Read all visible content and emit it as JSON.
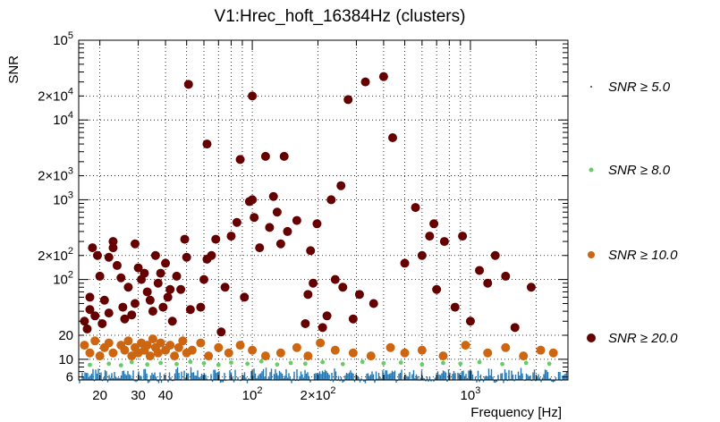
{
  "chart_data": {
    "type": "scatter",
    "title": "V1:Hrec_hoft_16384Hz (clusters)",
    "xlabel": "Frequency [Hz]",
    "ylabel": "SNR",
    "xscale": "log",
    "yscale": "log",
    "xlim": [
      16,
      2800
    ],
    "ylim": [
      5.5,
      100000
    ],
    "grid": true,
    "legend_placement": "right",
    "x_ticks": [
      {
        "value": 20,
        "label": "20"
      },
      {
        "value": 30,
        "label": "30"
      },
      {
        "value": 40,
        "label": "40"
      },
      {
        "value": 100,
        "label": "10",
        "exp": "2"
      },
      {
        "value": 200,
        "label": "2×10",
        "exp": "2"
      },
      {
        "value": 1000,
        "label": "10",
        "exp": "3"
      }
    ],
    "y_ticks": [
      {
        "value": 6,
        "label": "6"
      },
      {
        "value": 10,
        "label": "10"
      },
      {
        "value": 20,
        "label": "20"
      },
      {
        "value": 100,
        "label": "10",
        "exp": "2"
      },
      {
        "value": 200,
        "label": "2×10",
        "exp": "2"
      },
      {
        "value": 1000,
        "label": "10",
        "exp": "3"
      },
      {
        "value": 2000,
        "label": "2×10",
        "exp": "3"
      },
      {
        "value": 10000,
        "label": "10",
        "exp": "4"
      },
      {
        "value": 20000,
        "label": "2×10",
        "exp": "4"
      },
      {
        "value": 100000,
        "label": "10",
        "exp": "5"
      }
    ],
    "series": [
      {
        "name": "SNR ≥ 5.0",
        "color": "#1f77b4",
        "marker": "dot-column",
        "note_range": [
          5.0,
          8.0
        ]
      },
      {
        "name": "SNR ≥ 8.0",
        "color": "#66cc66",
        "marker": "dot",
        "points": [
          [
            18,
            8.5
          ],
          [
            22,
            8.8
          ],
          [
            25,
            8.4
          ],
          [
            28,
            9.2
          ],
          [
            33,
            8.6
          ],
          [
            38,
            9.0
          ],
          [
            45,
            8.7
          ],
          [
            52,
            9.3
          ],
          [
            60,
            8.9
          ],
          [
            70,
            8.5
          ],
          [
            80,
            9.1
          ],
          [
            95,
            8.8
          ],
          [
            110,
            9.4
          ],
          [
            130,
            8.6
          ],
          [
            150,
            9.0
          ],
          [
            175,
            8.8
          ],
          [
            210,
            9.2
          ],
          [
            260,
            8.7
          ],
          [
            320,
            9.3
          ],
          [
            400,
            8.9
          ],
          [
            480,
            9.1
          ],
          [
            600,
            8.6
          ],
          [
            750,
            9.0
          ],
          [
            900,
            8.8
          ],
          [
            1100,
            9.2
          ],
          [
            1400,
            8.7
          ],
          [
            1800,
            9.0
          ],
          [
            2300,
            8.8
          ]
        ]
      },
      {
        "name": "SNR ≥ 10.0",
        "color": "#cc6611",
        "marker": "circle",
        "points": [
          [
            17,
            15
          ],
          [
            18,
            12
          ],
          [
            19,
            17
          ],
          [
            20,
            11
          ],
          [
            21,
            14
          ],
          [
            22,
            16
          ],
          [
            23,
            12
          ],
          [
            25,
            15
          ],
          [
            26,
            13
          ],
          [
            27,
            17
          ],
          [
            28,
            11
          ],
          [
            29,
            14
          ],
          [
            30,
            12
          ],
          [
            31,
            16
          ],
          [
            32,
            13
          ],
          [
            33,
            15
          ],
          [
            34,
            11
          ],
          [
            35,
            18
          ],
          [
            36,
            14
          ],
          [
            37,
            12
          ],
          [
            38,
            16
          ],
          [
            40,
            13
          ],
          [
            42,
            15
          ],
          [
            44,
            11
          ],
          [
            46,
            14
          ],
          [
            48,
            17
          ],
          [
            50,
            12
          ],
          [
            53,
            13
          ],
          [
            58,
            16
          ],
          [
            63,
            11
          ],
          [
            70,
            14
          ],
          [
            78,
            12
          ],
          [
            88,
            15
          ],
          [
            100,
            13
          ],
          [
            115,
            11
          ],
          [
            135,
            12
          ],
          [
            160,
            14
          ],
          [
            180,
            11
          ],
          [
            205,
            16
          ],
          [
            240,
            13
          ],
          [
            290,
            12
          ],
          [
            350,
            11
          ],
          [
            430,
            14
          ],
          [
            500,
            12
          ],
          [
            600,
            13
          ],
          [
            750,
            11
          ],
          [
            950,
            15
          ],
          [
            1200,
            12
          ],
          [
            1450,
            14
          ],
          [
            1750,
            11
          ],
          [
            2100,
            13
          ],
          [
            2400,
            12
          ]
        ]
      },
      {
        "name": "SNR ≥ 20.0",
        "color": "#660000",
        "marker": "circle",
        "points": [
          [
            17,
            30
          ],
          [
            17.5,
            24
          ],
          [
            18,
            42
          ],
          [
            18,
            60
          ],
          [
            18.5,
            250
          ],
          [
            19,
            35
          ],
          [
            19.5,
            200
          ],
          [
            20,
            110
          ],
          [
            20.5,
            28
          ],
          [
            21,
            55
          ],
          [
            22,
            38
          ],
          [
            22,
            190
          ],
          [
            23,
            300
          ],
          [
            23,
            250
          ],
          [
            24,
            150
          ],
          [
            25,
            105
          ],
          [
            25.5,
            45
          ],
          [
            26,
            32
          ],
          [
            27,
            80
          ],
          [
            28,
            36
          ],
          [
            29,
            50
          ],
          [
            29,
            280
          ],
          [
            30,
            140
          ],
          [
            31,
            100
          ],
          [
            32,
            120
          ],
          [
            33,
            70
          ],
          [
            34,
            55
          ],
          [
            35,
            40
          ],
          [
            36,
            200
          ],
          [
            37,
            90
          ],
          [
            38,
            120
          ],
          [
            39,
            45
          ],
          [
            40,
            160
          ],
          [
            41,
            60
          ],
          [
            42,
            75
          ],
          [
            43,
            30
          ],
          [
            45,
            110
          ],
          [
            47,
            75
          ],
          [
            49,
            320
          ],
          [
            50,
            190
          ],
          [
            51,
            28000
          ],
          [
            52,
            42
          ],
          [
            58,
            45
          ],
          [
            60,
            100
          ],
          [
            62,
            180
          ],
          [
            62,
            5000
          ],
          [
            65,
            200
          ],
          [
            68,
            320
          ],
          [
            72,
            22
          ],
          [
            75,
            80
          ],
          [
            80,
            350
          ],
          [
            85,
            520
          ],
          [
            88,
            3200
          ],
          [
            92,
            60
          ],
          [
            97,
            950
          ],
          [
            100,
            20000
          ],
          [
            100,
            1000
          ],
          [
            102,
            600
          ],
          [
            108,
            250
          ],
          [
            115,
            3500
          ],
          [
            120,
            450
          ],
          [
            125,
            1100
          ],
          [
            130,
            700
          ],
          [
            135,
            280
          ],
          [
            140,
            3500
          ],
          [
            145,
            400
          ],
          [
            160,
            550
          ],
          [
            175,
            28
          ],
          [
            180,
            65
          ],
          [
            185,
            230
          ],
          [
            190,
            90
          ],
          [
            198,
            500
          ],
          [
            210,
            25
          ],
          [
            220,
            35
          ],
          [
            230,
            1000
          ],
          [
            240,
            100
          ],
          [
            255,
            1500
          ],
          [
            260,
            80
          ],
          [
            275,
            18000
          ],
          [
            290,
            32
          ],
          [
            310,
            65
          ],
          [
            330,
            30000
          ],
          [
            360,
            50
          ],
          [
            400,
            35000
          ],
          [
            440,
            6000
          ],
          [
            500,
            160
          ],
          [
            560,
            800
          ],
          [
            600,
            200
          ],
          [
            650,
            350
          ],
          [
            680,
            500
          ],
          [
            700,
            75
          ],
          [
            760,
            300
          ],
          [
            850,
            45
          ],
          [
            920,
            350
          ],
          [
            1000,
            30
          ],
          [
            1100,
            130
          ],
          [
            1200,
            90
          ],
          [
            1300,
            200
          ],
          [
            1450,
            110
          ],
          [
            1600,
            25
          ],
          [
            1900,
            80
          ]
        ]
      }
    ]
  }
}
